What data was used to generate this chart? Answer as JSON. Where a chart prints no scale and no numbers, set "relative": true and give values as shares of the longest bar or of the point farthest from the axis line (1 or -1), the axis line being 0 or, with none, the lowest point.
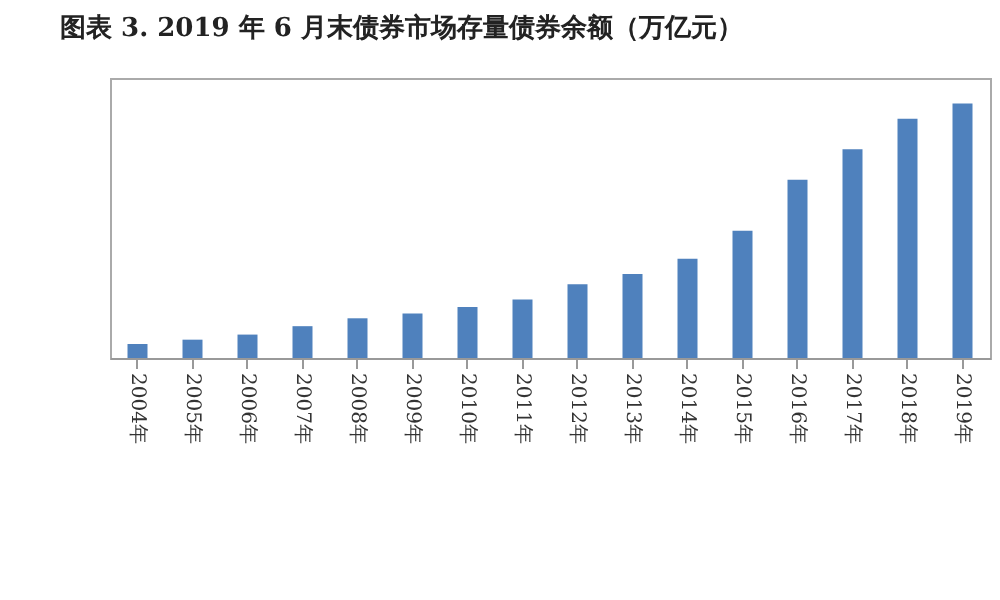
{
  "chart_data": {
    "type": "bar",
    "title": "图表 3.  2019 年 6 月末债券市场存量债券余额（万亿元）",
    "categories": [
      "2004年",
      "2005年",
      "2006年",
      "2007年",
      "2008年",
      "2009年",
      "2010年",
      "2011年",
      "2012年",
      "2013年",
      "2014年",
      "2015年",
      "2016年",
      "2017年",
      "2018年",
      "2019年"
    ],
    "values": [
      0.055,
      0.072,
      0.092,
      0.125,
      0.156,
      0.175,
      0.2,
      0.23,
      0.29,
      0.33,
      0.39,
      0.5,
      0.7,
      0.82,
      0.94,
      1
    ],
    "color": "#4f81bd",
    "relative": true
  }
}
